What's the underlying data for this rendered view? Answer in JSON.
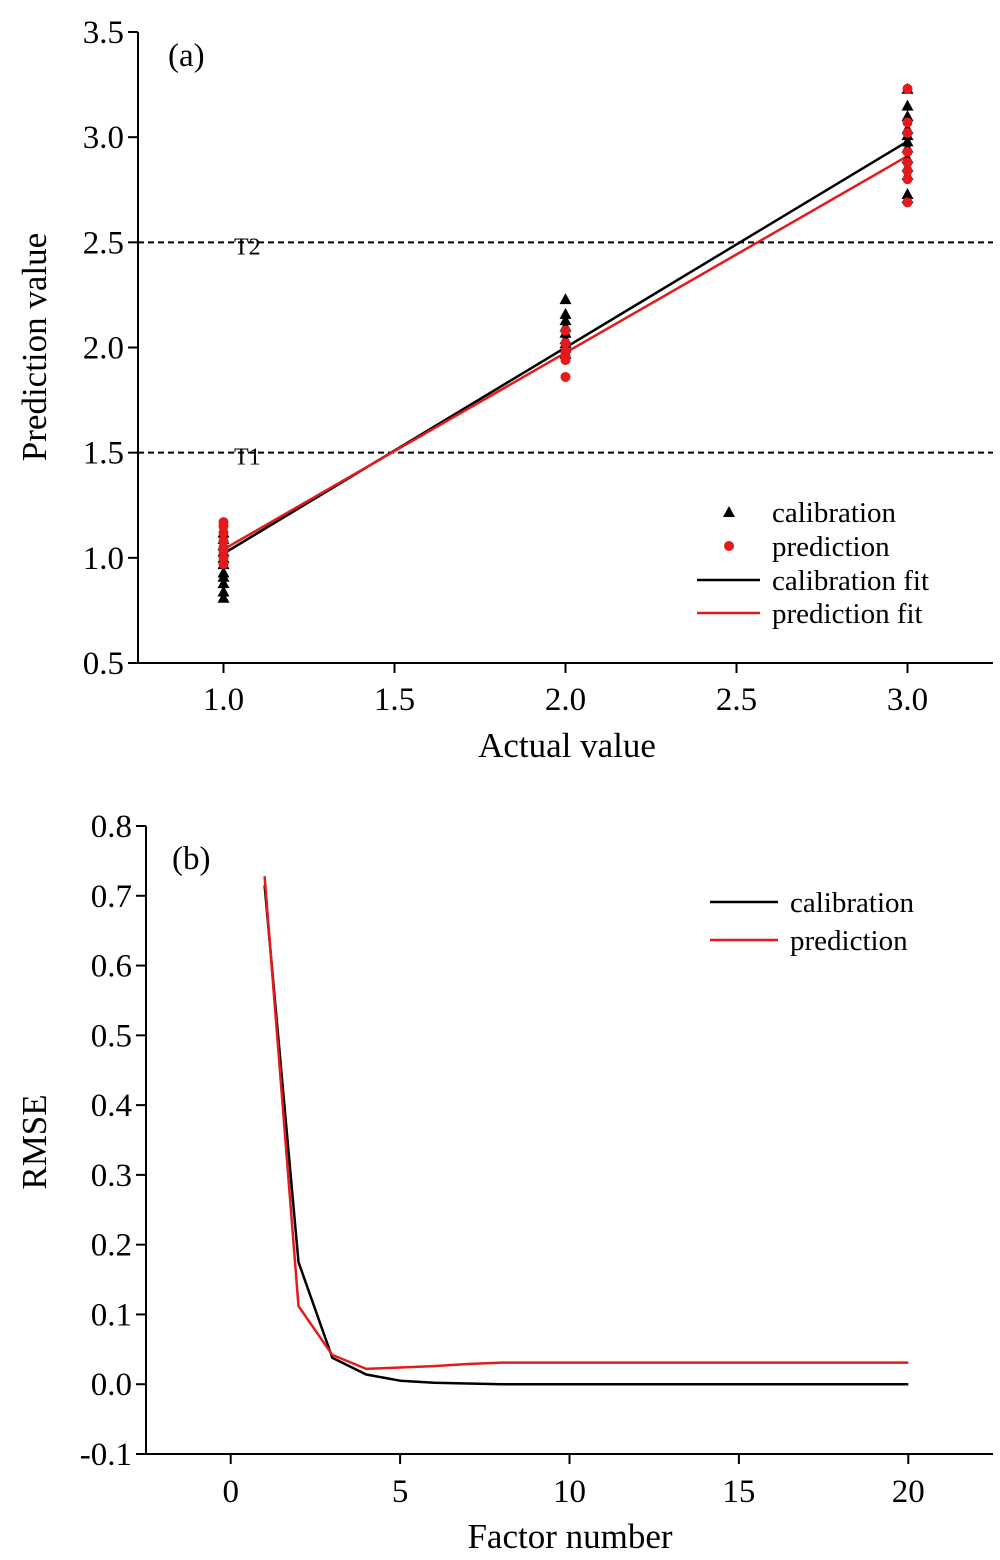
{
  "chart_data": [
    {
      "panel": "(a)",
      "type": "scatter",
      "xlabel": "Actual value",
      "ylabel": "Prediction value",
      "xlim": [
        0.75,
        3.25
      ],
      "ylim": [
        0.5,
        3.5
      ],
      "xticks": [
        "1.0",
        "1.5",
        "2.0",
        "2.5",
        "3.0"
      ],
      "yticks": [
        "0.5",
        "1.0",
        "1.5",
        "2.0",
        "2.5",
        "3.0",
        "3.5"
      ],
      "reference_lines": [
        {
          "label": "T1",
          "y": 1.5
        },
        {
          "label": "T2",
          "y": 2.5
        }
      ],
      "series": [
        {
          "name": "calibration",
          "kind": "points",
          "marker": "triangle",
          "color": "#000000",
          "points": [
            [
              1,
              0.81
            ],
            [
              1,
              0.84
            ],
            [
              1,
              0.88
            ],
            [
              1,
              0.91
            ],
            [
              1,
              0.93
            ],
            [
              1,
              0.97
            ],
            [
              1,
              1.0
            ],
            [
              1,
              1.03
            ],
            [
              1,
              1.06
            ],
            [
              1,
              1.09
            ],
            [
              1,
              1.12
            ],
            [
              2,
              1.97
            ],
            [
              2,
              2.0
            ],
            [
              2,
              2.02
            ],
            [
              2,
              2.04
            ],
            [
              2,
              2.07
            ],
            [
              2,
              2.1
            ],
            [
              2,
              2.13
            ],
            [
              2,
              2.16
            ],
            [
              2,
              2.23
            ],
            [
              3,
              2.71
            ],
            [
              3,
              2.73
            ],
            [
              3,
              2.82
            ],
            [
              3,
              2.86
            ],
            [
              3,
              2.9
            ],
            [
              3,
              2.95
            ],
            [
              3,
              2.98
            ],
            [
              3,
              3.01
            ],
            [
              3,
              3.04
            ],
            [
              3,
              3.1
            ],
            [
              3,
              3.15
            ],
            [
              3,
              3.23
            ]
          ]
        },
        {
          "name": "prediction",
          "kind": "points",
          "marker": "circle",
          "color": "#e41a1c",
          "points": [
            [
              1,
              0.97
            ],
            [
              1,
              1.0
            ],
            [
              1,
              1.03
            ],
            [
              1,
              1.05
            ],
            [
              1,
              1.08
            ],
            [
              1,
              1.12
            ],
            [
              1,
              1.15
            ],
            [
              1,
              1.17
            ],
            [
              2,
              1.86
            ],
            [
              2,
              1.94
            ],
            [
              2,
              1.96
            ],
            [
              2,
              1.98
            ],
            [
              2,
              2.02
            ],
            [
              2,
              2.08
            ],
            [
              3,
              2.69
            ],
            [
              3,
              2.8
            ],
            [
              3,
              2.84
            ],
            [
              3,
              2.88
            ],
            [
              3,
              2.93
            ],
            [
              3,
              3.02
            ],
            [
              3,
              3.07
            ],
            [
              3,
              3.23
            ]
          ]
        },
        {
          "name": "calibration fit",
          "kind": "line",
          "color": "#000000",
          "points": [
            [
              1,
              1.02
            ],
            [
              3,
              2.98
            ]
          ]
        },
        {
          "name": "prediction fit",
          "kind": "line",
          "color": "#e41a1c",
          "points": [
            [
              1,
              1.04
            ],
            [
              3,
              2.91
            ]
          ]
        }
      ]
    },
    {
      "panel": "(b)",
      "type": "line",
      "xlabel": "Factor number",
      "ylabel": "RMSE",
      "xlim": [
        -2.5,
        22.5
      ],
      "ylim": [
        -0.1,
        0.8
      ],
      "xticks": [
        "0",
        "5",
        "10",
        "15",
        "20"
      ],
      "yticks": [
        "-0.1",
        "0.0",
        "0.1",
        "0.2",
        "0.3",
        "0.4",
        "0.5",
        "0.6",
        "0.7",
        "0.8"
      ],
      "x": [
        1,
        2,
        3,
        4,
        5,
        6,
        7,
        8,
        9,
        10,
        11,
        12,
        13,
        14,
        15,
        16,
        17,
        18,
        19,
        20
      ],
      "series": [
        {
          "name": "calibration",
          "color": "#000000",
          "values": [
            0.715,
            0.175,
            0.038,
            0.014,
            0.005,
            0.002,
            0.001,
            0.0,
            0.0,
            0.0,
            0.0,
            0.0,
            0.0,
            0.0,
            0.0,
            0.0,
            0.0,
            0.0,
            0.0,
            0.0
          ]
        },
        {
          "name": "prediction",
          "color": "#e41a1c",
          "values": [
            0.728,
            0.112,
            0.042,
            0.022,
            0.024,
            0.026,
            0.029,
            0.031,
            0.031,
            0.031,
            0.031,
            0.031,
            0.031,
            0.031,
            0.031,
            0.031,
            0.031,
            0.031,
            0.031,
            0.031
          ]
        }
      ]
    }
  ]
}
